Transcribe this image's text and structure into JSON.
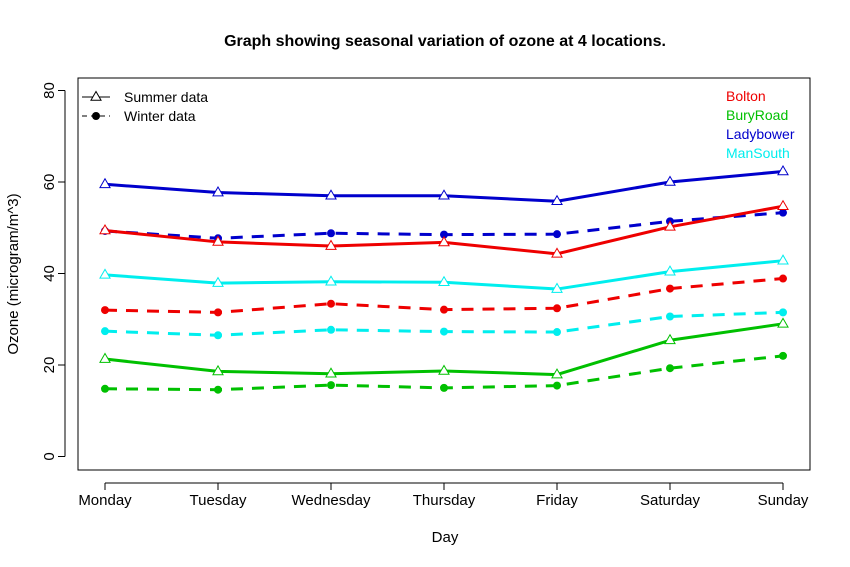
{
  "chart_data": {
    "type": "line",
    "title": "Graph showing seasonal variation of ozone at 4 locations.",
    "xlabel": "Day",
    "ylabel": "Ozone (microgram/m^3)",
    "ylim": [
      0,
      80
    ],
    "yticks": [
      0,
      20,
      40,
      60,
      80
    ],
    "grid": false,
    "categories": [
      "Monday",
      "Tuesday",
      "Wednesday",
      "Thursday",
      "Friday",
      "Saturday",
      "Sunday"
    ],
    "legend": {
      "placement": "top-left",
      "entries": [
        {
          "label": "Summer data",
          "marker": "triangle-open",
          "line": "solid"
        },
        {
          "label": "Winter data",
          "marker": "circle-filled",
          "line": "dashed"
        }
      ]
    },
    "locations": [
      {
        "name": "Bolton",
        "color": "#ee0000"
      },
      {
        "name": "BuryRoad",
        "color": "#00c000"
      },
      {
        "name": "Ladybower",
        "color": "#0000cc"
      },
      {
        "name": "ManSouth",
        "color": "#00eeee"
      }
    ],
    "series": [
      {
        "location": "Ladybower",
        "season": "Summer data",
        "color": "#0000cc",
        "values": [
          59.5,
          57.7,
          57.0,
          57.0,
          55.8,
          60.0,
          62.3
        ]
      },
      {
        "location": "Ladybower",
        "season": "Winter data",
        "color": "#0000cc",
        "values": [
          49.3,
          47.7,
          48.8,
          48.5,
          48.6,
          51.4,
          53.3
        ]
      },
      {
        "location": "Bolton",
        "season": "Summer data",
        "color": "#ee0000",
        "values": [
          49.4,
          46.9,
          46.0,
          46.8,
          44.3,
          50.2,
          54.7
        ]
      },
      {
        "location": "Bolton",
        "season": "Winter data",
        "color": "#ee0000",
        "values": [
          32.0,
          31.5,
          33.4,
          32.1,
          32.4,
          36.7,
          38.9
        ]
      },
      {
        "location": "ManSouth",
        "season": "Summer data",
        "color": "#00eeee",
        "values": [
          39.7,
          37.9,
          38.2,
          38.1,
          36.6,
          40.4,
          42.8
        ]
      },
      {
        "location": "ManSouth",
        "season": "Winter data",
        "color": "#00eeee",
        "values": [
          27.4,
          26.5,
          27.7,
          27.3,
          27.2,
          30.6,
          31.5
        ]
      },
      {
        "location": "BuryRoad",
        "season": "Summer data",
        "color": "#00c000",
        "values": [
          21.3,
          18.6,
          18.1,
          18.7,
          17.9,
          25.4,
          29.0
        ]
      },
      {
        "location": "BuryRoad",
        "season": "Winter data",
        "color": "#00c000",
        "values": [
          14.8,
          14.6,
          15.6,
          15.0,
          15.5,
          19.3,
          22.0
        ]
      }
    ]
  }
}
